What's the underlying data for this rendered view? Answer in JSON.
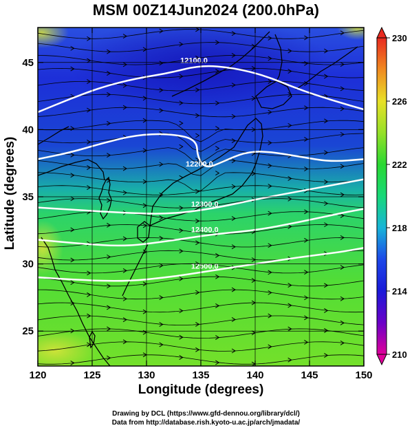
{
  "title": "MSM 00Z14Jun2024 (200.0hPa)",
  "xlabel": "Longitude (degrees)",
  "ylabel": "Latitude  (degrees)",
  "credit_line1": "Drawing by DCL (https://www.gfd-dennou.org/library/dcl/)",
  "credit_line2": "Data from http://database.rish.kyoto-u.ac.jp/arch/jmadata/",
  "map": {
    "lon_range": [
      120,
      150
    ],
    "lat_range": [
      22.4,
      47.6
    ],
    "lon_ticks": [
      120,
      125,
      130,
      135,
      140,
      145,
      150
    ],
    "lon_tick_labels": [
      "120",
      "125",
      "130",
      "135",
      "140",
      "145",
      "150"
    ],
    "lat_ticks": [
      25,
      30,
      35,
      40,
      45
    ],
    "lat_tick_labels": [
      "25",
      "30",
      "35",
      "40",
      "45"
    ],
    "grid": true,
    "field": "temperature",
    "contours": [
      {
        "label": "12100.0",
        "points": [
          [
            120,
            41.3
          ],
          [
            123,
            42.3
          ],
          [
            126,
            43.2
          ],
          [
            129,
            43.8
          ],
          [
            132,
            44.2
          ],
          [
            135,
            44.8
          ],
          [
            138,
            44.6
          ],
          [
            141,
            44.0
          ],
          [
            144,
            43.0
          ],
          [
            147,
            42.2
          ],
          [
            150,
            41.5
          ]
        ]
      },
      {
        "label": "12200.0",
        "points": [
          [
            120,
            37.8
          ],
          [
            123,
            38.3
          ],
          [
            126,
            39.0
          ],
          [
            129,
            39.6
          ],
          [
            132,
            39.7
          ],
          [
            134.6,
            39.3
          ],
          [
            134.7,
            37.9
          ],
          [
            135.5,
            37.1
          ],
          [
            137,
            37.6
          ],
          [
            139,
            38.3
          ],
          [
            141,
            38.4
          ],
          [
            144,
            38.0
          ],
          [
            147,
            37.6
          ],
          [
            150,
            37.8
          ]
        ]
      },
      {
        "label": "12300.0",
        "points": [
          [
            120,
            34.2
          ],
          [
            124,
            34.0
          ],
          [
            128,
            33.8
          ],
          [
            132,
            33.7
          ],
          [
            136,
            34.1
          ],
          [
            140,
            34.8
          ],
          [
            144,
            35.4
          ],
          [
            148,
            36.0
          ],
          [
            150,
            36.3
          ]
        ]
      },
      {
        "label": "12400.0",
        "points": [
          [
            120,
            31.8
          ],
          [
            124,
            31.5
          ],
          [
            128,
            31.3
          ],
          [
            132,
            31.7
          ],
          [
            136,
            32.2
          ],
          [
            140,
            32.5
          ],
          [
            144,
            33.1
          ],
          [
            148,
            33.8
          ],
          [
            150,
            34.1
          ]
        ]
      },
      {
        "label": "12500.0",
        "points": [
          [
            120,
            29.0
          ],
          [
            124,
            28.8
          ],
          [
            128,
            28.7
          ],
          [
            132,
            29.0
          ],
          [
            136,
            29.5
          ],
          [
            140,
            30.0
          ],
          [
            144,
            30.5
          ],
          [
            148,
            30.9
          ],
          [
            150,
            31.2
          ]
        ]
      }
    ],
    "colorbar": {
      "ticks": [
        210,
        214,
        218,
        222,
        226,
        230
      ],
      "tick_labels": [
        "210",
        "214",
        "218",
        "222",
        "226",
        "230"
      ],
      "range": [
        210,
        230
      ]
    }
  }
}
